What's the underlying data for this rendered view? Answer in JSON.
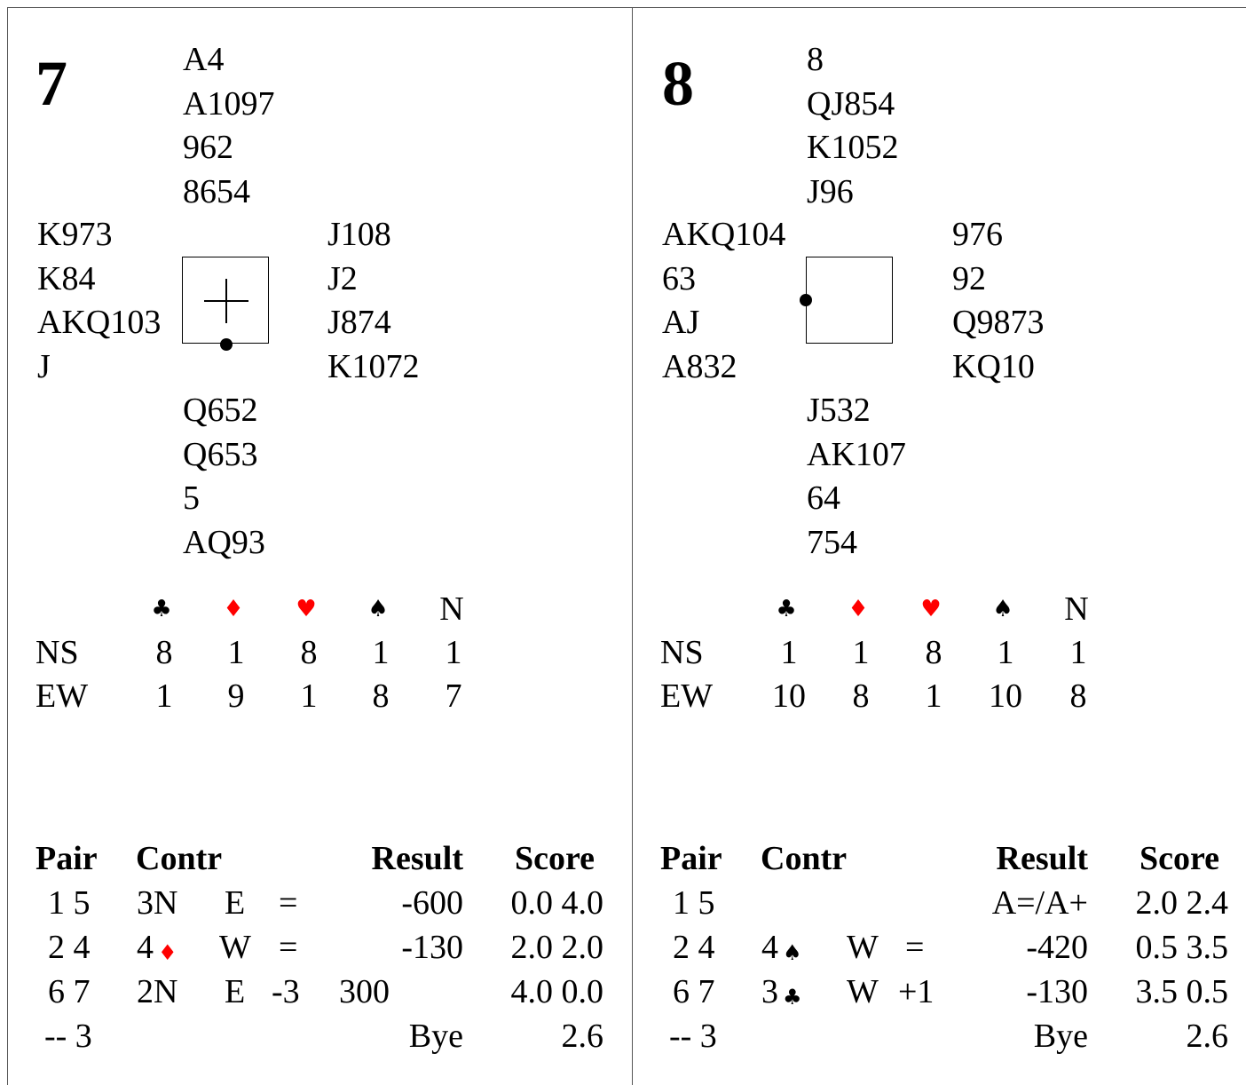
{
  "boards": [
    {
      "number": "7",
      "north": [
        "A4",
        "A1097",
        "962",
        "8654"
      ],
      "west": [
        "K973",
        "K84",
        "AKQ103",
        "J"
      ],
      "east": [
        "J108",
        "J2",
        "J874",
        "K1072"
      ],
      "south": [
        "Q652",
        "Q653",
        "5",
        "AQ93"
      ],
      "dealer": "S",
      "vulnerability": "All",
      "tricks_header": [
        "♣",
        "♦",
        "♥",
        "♠",
        "N"
      ],
      "tricks_rows": [
        {
          "label": "NS",
          "values": [
            "8",
            "1",
            "8",
            "1",
            "1"
          ]
        },
        {
          "label": "EW",
          "values": [
            "1",
            "9",
            "1",
            "8",
            "7"
          ]
        }
      ],
      "results_header": {
        "pair": "Pair",
        "contract": "Contr",
        "result": "Result",
        "score": "Score"
      },
      "results": [
        {
          "pair": "1 5",
          "level": "3N",
          "suit": "",
          "suit_color": "",
          "declarer": "E",
          "made": "=",
          "ns_score": "",
          "result": "-600",
          "score": "0.0 4.0"
        },
        {
          "pair": "2 4",
          "level": "4",
          "suit": "♦",
          "suit_color": "#ff0000",
          "declarer": "W",
          "made": "=",
          "ns_score": "",
          "result": "-130",
          "score": "2.0 2.0"
        },
        {
          "pair": "6 7",
          "level": "2N",
          "suit": "",
          "suit_color": "",
          "declarer": "E",
          "made": "-3",
          "ns_score": "300",
          "result": "",
          "score": "4.0 0.0"
        },
        {
          "pair": "-- 3",
          "level": "",
          "suit": "",
          "suit_color": "",
          "declarer": "",
          "made": "",
          "ns_score": "",
          "result": "Bye",
          "score": "2.6"
        }
      ]
    },
    {
      "number": "8",
      "north": [
        "8",
        "QJ854",
        "K1052",
        "J96"
      ],
      "west": [
        "AKQ104",
        "63",
        "AJ",
        "A832"
      ],
      "east": [
        "976",
        "92",
        "Q9873",
        "KQ10"
      ],
      "south": [
        "J532",
        "AK107",
        "64",
        "754"
      ],
      "dealer": "W",
      "vulnerability": "None",
      "tricks_header": [
        "♣",
        "♦",
        "♥",
        "♠",
        "N"
      ],
      "tricks_rows": [
        {
          "label": "NS",
          "values": [
            "1",
            "1",
            "8",
            "1",
            "1"
          ]
        },
        {
          "label": "EW",
          "values": [
            "10",
            "8",
            "1",
            "10",
            "8"
          ]
        }
      ],
      "results_header": {
        "pair": "Pair",
        "contract": "Contr",
        "result": "Result",
        "score": "Score"
      },
      "results": [
        {
          "pair": "1 5",
          "level": "",
          "suit": "",
          "suit_color": "",
          "declarer": "",
          "made": "",
          "ns_score": "",
          "result": "A=/A+",
          "score": "2.0 2.4"
        },
        {
          "pair": "2 4",
          "level": "4",
          "suit": "♠",
          "suit_color": "#000000",
          "declarer": "W",
          "made": "=",
          "ns_score": "",
          "result": "-420",
          "score": "0.5 3.5"
        },
        {
          "pair": "6 7",
          "level": "3",
          "suit": "♣",
          "suit_color": "#000000",
          "declarer": "W",
          "made": "+1",
          "ns_score": "",
          "result": "-130",
          "score": "3.5 0.5"
        },
        {
          "pair": "-- 3",
          "level": "",
          "suit": "",
          "suit_color": "",
          "declarer": "",
          "made": "",
          "ns_score": "",
          "result": "Bye",
          "score": "2.6"
        }
      ]
    }
  ],
  "colors": {
    "red_suit": "#ff0000",
    "black_suit": "#000000",
    "rule": "#555555"
  }
}
